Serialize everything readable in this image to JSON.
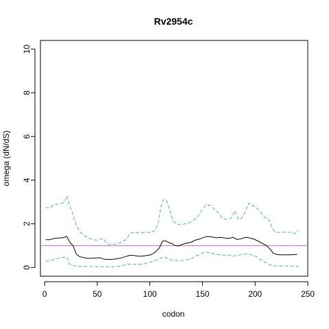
{
  "chart_data": {
    "type": "line",
    "title": "Rv2954c",
    "xlabel": "codon",
    "ylabel": "omega (dN/dS)",
    "xlim": [
      -4,
      250
    ],
    "ylim": [
      -0.4,
      10.4
    ],
    "x_ticks": [
      0,
      50,
      100,
      150,
      200,
      250
    ],
    "y_ticks": [
      0,
      2,
      4,
      6,
      8,
      10
    ],
    "grid": false,
    "reference_line": {
      "y": 1,
      "color": "#cc66cc"
    },
    "series": [
      {
        "style": "solid",
        "color": "#000000",
        "points": [
          [
            1,
            1.27
          ],
          [
            5,
            1.27
          ],
          [
            9,
            1.33
          ],
          [
            13,
            1.35
          ],
          [
            17,
            1.36
          ],
          [
            21,
            1.42
          ],
          [
            24,
            1.15
          ],
          [
            27,
            1.0
          ],
          [
            30,
            0.62
          ],
          [
            33,
            0.5
          ],
          [
            37,
            0.45
          ],
          [
            41,
            0.42
          ],
          [
            45,
            0.42
          ],
          [
            49,
            0.44
          ],
          [
            53,
            0.44
          ],
          [
            57,
            0.38
          ],
          [
            61,
            0.37
          ],
          [
            65,
            0.38
          ],
          [
            69,
            0.4
          ],
          [
            73,
            0.44
          ],
          [
            77,
            0.5
          ],
          [
            81,
            0.56
          ],
          [
            85,
            0.55
          ],
          [
            89,
            0.52
          ],
          [
            93,
            0.52
          ],
          [
            97,
            0.55
          ],
          [
            101,
            0.58
          ],
          [
            105,
            0.7
          ],
          [
            109,
            0.9
          ],
          [
            112,
            1.2
          ],
          [
            115,
            1.22
          ],
          [
            118,
            1.14
          ],
          [
            121,
            1.1
          ],
          [
            124,
            1.0
          ],
          [
            127,
            0.98
          ],
          [
            131,
            1.06
          ],
          [
            135,
            1.12
          ],
          [
            139,
            1.15
          ],
          [
            143,
            1.25
          ],
          [
            147,
            1.3
          ],
          [
            151,
            1.38
          ],
          [
            155,
            1.42
          ],
          [
            159,
            1.4
          ],
          [
            163,
            1.36
          ],
          [
            167,
            1.38
          ],
          [
            171,
            1.35
          ],
          [
            175,
            1.33
          ],
          [
            179,
            1.38
          ],
          [
            183,
            1.28
          ],
          [
            187,
            1.32
          ],
          [
            191,
            1.38
          ],
          [
            195,
            1.35
          ],
          [
            199,
            1.3
          ],
          [
            203,
            1.2
          ],
          [
            207,
            1.1
          ],
          [
            211,
            1.0
          ],
          [
            214,
            0.85
          ],
          [
            217,
            0.66
          ],
          [
            221,
            0.59
          ],
          [
            225,
            0.58
          ],
          [
            229,
            0.58
          ],
          [
            233,
            0.58
          ],
          [
            237,
            0.59
          ],
          [
            240,
            0.6
          ]
        ]
      },
      {
        "style": "dashed",
        "color": "#4da6e0",
        "points": [
          [
            1,
            2.75
          ],
          [
            5,
            2.72
          ],
          [
            9,
            2.9
          ],
          [
            13,
            2.9
          ],
          [
            17,
            2.95
          ],
          [
            19,
            3.0
          ],
          [
            21,
            3.28
          ],
          [
            23,
            2.95
          ],
          [
            25,
            2.7
          ],
          [
            28,
            2.25
          ],
          [
            31,
            1.85
          ],
          [
            34,
            1.6
          ],
          [
            37,
            1.5
          ],
          [
            41,
            1.35
          ],
          [
            45,
            1.3
          ],
          [
            49,
            1.25
          ],
          [
            53,
            1.3
          ],
          [
            56,
            1.32
          ],
          [
            59,
            1.1
          ],
          [
            62,
            1.05
          ],
          [
            66,
            1.06
          ],
          [
            70,
            1.1
          ],
          [
            74,
            1.18
          ],
          [
            78,
            1.3
          ],
          [
            81,
            1.56
          ],
          [
            85,
            1.6
          ],
          [
            89,
            1.58
          ],
          [
            93,
            1.6
          ],
          [
            97,
            1.6
          ],
          [
            101,
            1.62
          ],
          [
            105,
            1.7
          ],
          [
            108,
            2.05
          ],
          [
            111,
            2.9
          ],
          [
            113,
            3.12
          ],
          [
            116,
            3.05
          ],
          [
            119,
            2.6
          ],
          [
            122,
            2.15
          ],
          [
            125,
            2.0
          ],
          [
            129,
            1.95
          ],
          [
            133,
            2.0
          ],
          [
            137,
            2.05
          ],
          [
            141,
            2.15
          ],
          [
            145,
            2.3
          ],
          [
            149,
            2.6
          ],
          [
            153,
            2.85
          ],
          [
            157,
            2.85
          ],
          [
            161,
            2.7
          ],
          [
            165,
            2.5
          ],
          [
            169,
            2.25
          ],
          [
            173,
            2.2
          ],
          [
            177,
            2.25
          ],
          [
            181,
            2.6
          ],
          [
            184,
            2.2
          ],
          [
            187,
            2.25
          ],
          [
            191,
            2.6
          ],
          [
            194,
            2.95
          ],
          [
            197,
            2.85
          ],
          [
            201,
            2.75
          ],
          [
            205,
            2.55
          ],
          [
            209,
            2.3
          ],
          [
            213,
            2.2
          ],
          [
            216,
            1.8
          ],
          [
            219,
            1.62
          ],
          [
            223,
            1.6
          ],
          [
            227,
            1.62
          ],
          [
            231,
            1.62
          ],
          [
            235,
            1.6
          ],
          [
            238,
            1.55
          ],
          [
            241,
            1.72
          ]
        ]
      },
      {
        "style": "dashed",
        "color": "#4da6e0",
        "points": [
          [
            1,
            0.28
          ],
          [
            5,
            0.3
          ],
          [
            9,
            0.38
          ],
          [
            13,
            0.42
          ],
          [
            17,
            0.45
          ],
          [
            21,
            0.48
          ],
          [
            23,
            0.2
          ],
          [
            25,
            0.12
          ],
          [
            28,
            0.08
          ],
          [
            31,
            0.05
          ],
          [
            35,
            0.05
          ],
          [
            39,
            0.05
          ],
          [
            43,
            0.04
          ],
          [
            47,
            0.04
          ],
          [
            51,
            0.03
          ],
          [
            55,
            0.04
          ],
          [
            59,
            0.03
          ],
          [
            63,
            0.03
          ],
          [
            67,
            0.04
          ],
          [
            71,
            0.06
          ],
          [
            75,
            0.1
          ],
          [
            79,
            0.15
          ],
          [
            83,
            0.16
          ],
          [
            87,
            0.15
          ],
          [
            91,
            0.15
          ],
          [
            95,
            0.18
          ],
          [
            99,
            0.22
          ],
          [
            103,
            0.28
          ],
          [
            107,
            0.35
          ],
          [
            111,
            0.45
          ],
          [
            114,
            0.48
          ],
          [
            117,
            0.4
          ],
          [
            120,
            0.35
          ],
          [
            123,
            0.32
          ],
          [
            127,
            0.3
          ],
          [
            131,
            0.32
          ],
          [
            135,
            0.35
          ],
          [
            139,
            0.4
          ],
          [
            143,
            0.5
          ],
          [
            147,
            0.6
          ],
          [
            151,
            0.68
          ],
          [
            155,
            0.7
          ],
          [
            159,
            0.65
          ],
          [
            163,
            0.6
          ],
          [
            167,
            0.58
          ],
          [
            171,
            0.55
          ],
          [
            175,
            0.58
          ],
          [
            179,
            0.52
          ],
          [
            183,
            0.55
          ],
          [
            187,
            0.6
          ],
          [
            191,
            0.62
          ],
          [
            195,
            0.6
          ],
          [
            199,
            0.55
          ],
          [
            203,
            0.45
          ],
          [
            207,
            0.3
          ],
          [
            211,
            0.2
          ],
          [
            214,
            0.12
          ],
          [
            218,
            0.08
          ],
          [
            222,
            0.06
          ],
          [
            226,
            0.06
          ],
          [
            230,
            0.07
          ],
          [
            234,
            0.07
          ],
          [
            238,
            0.05
          ],
          [
            241,
            0.05
          ]
        ]
      }
    ]
  }
}
